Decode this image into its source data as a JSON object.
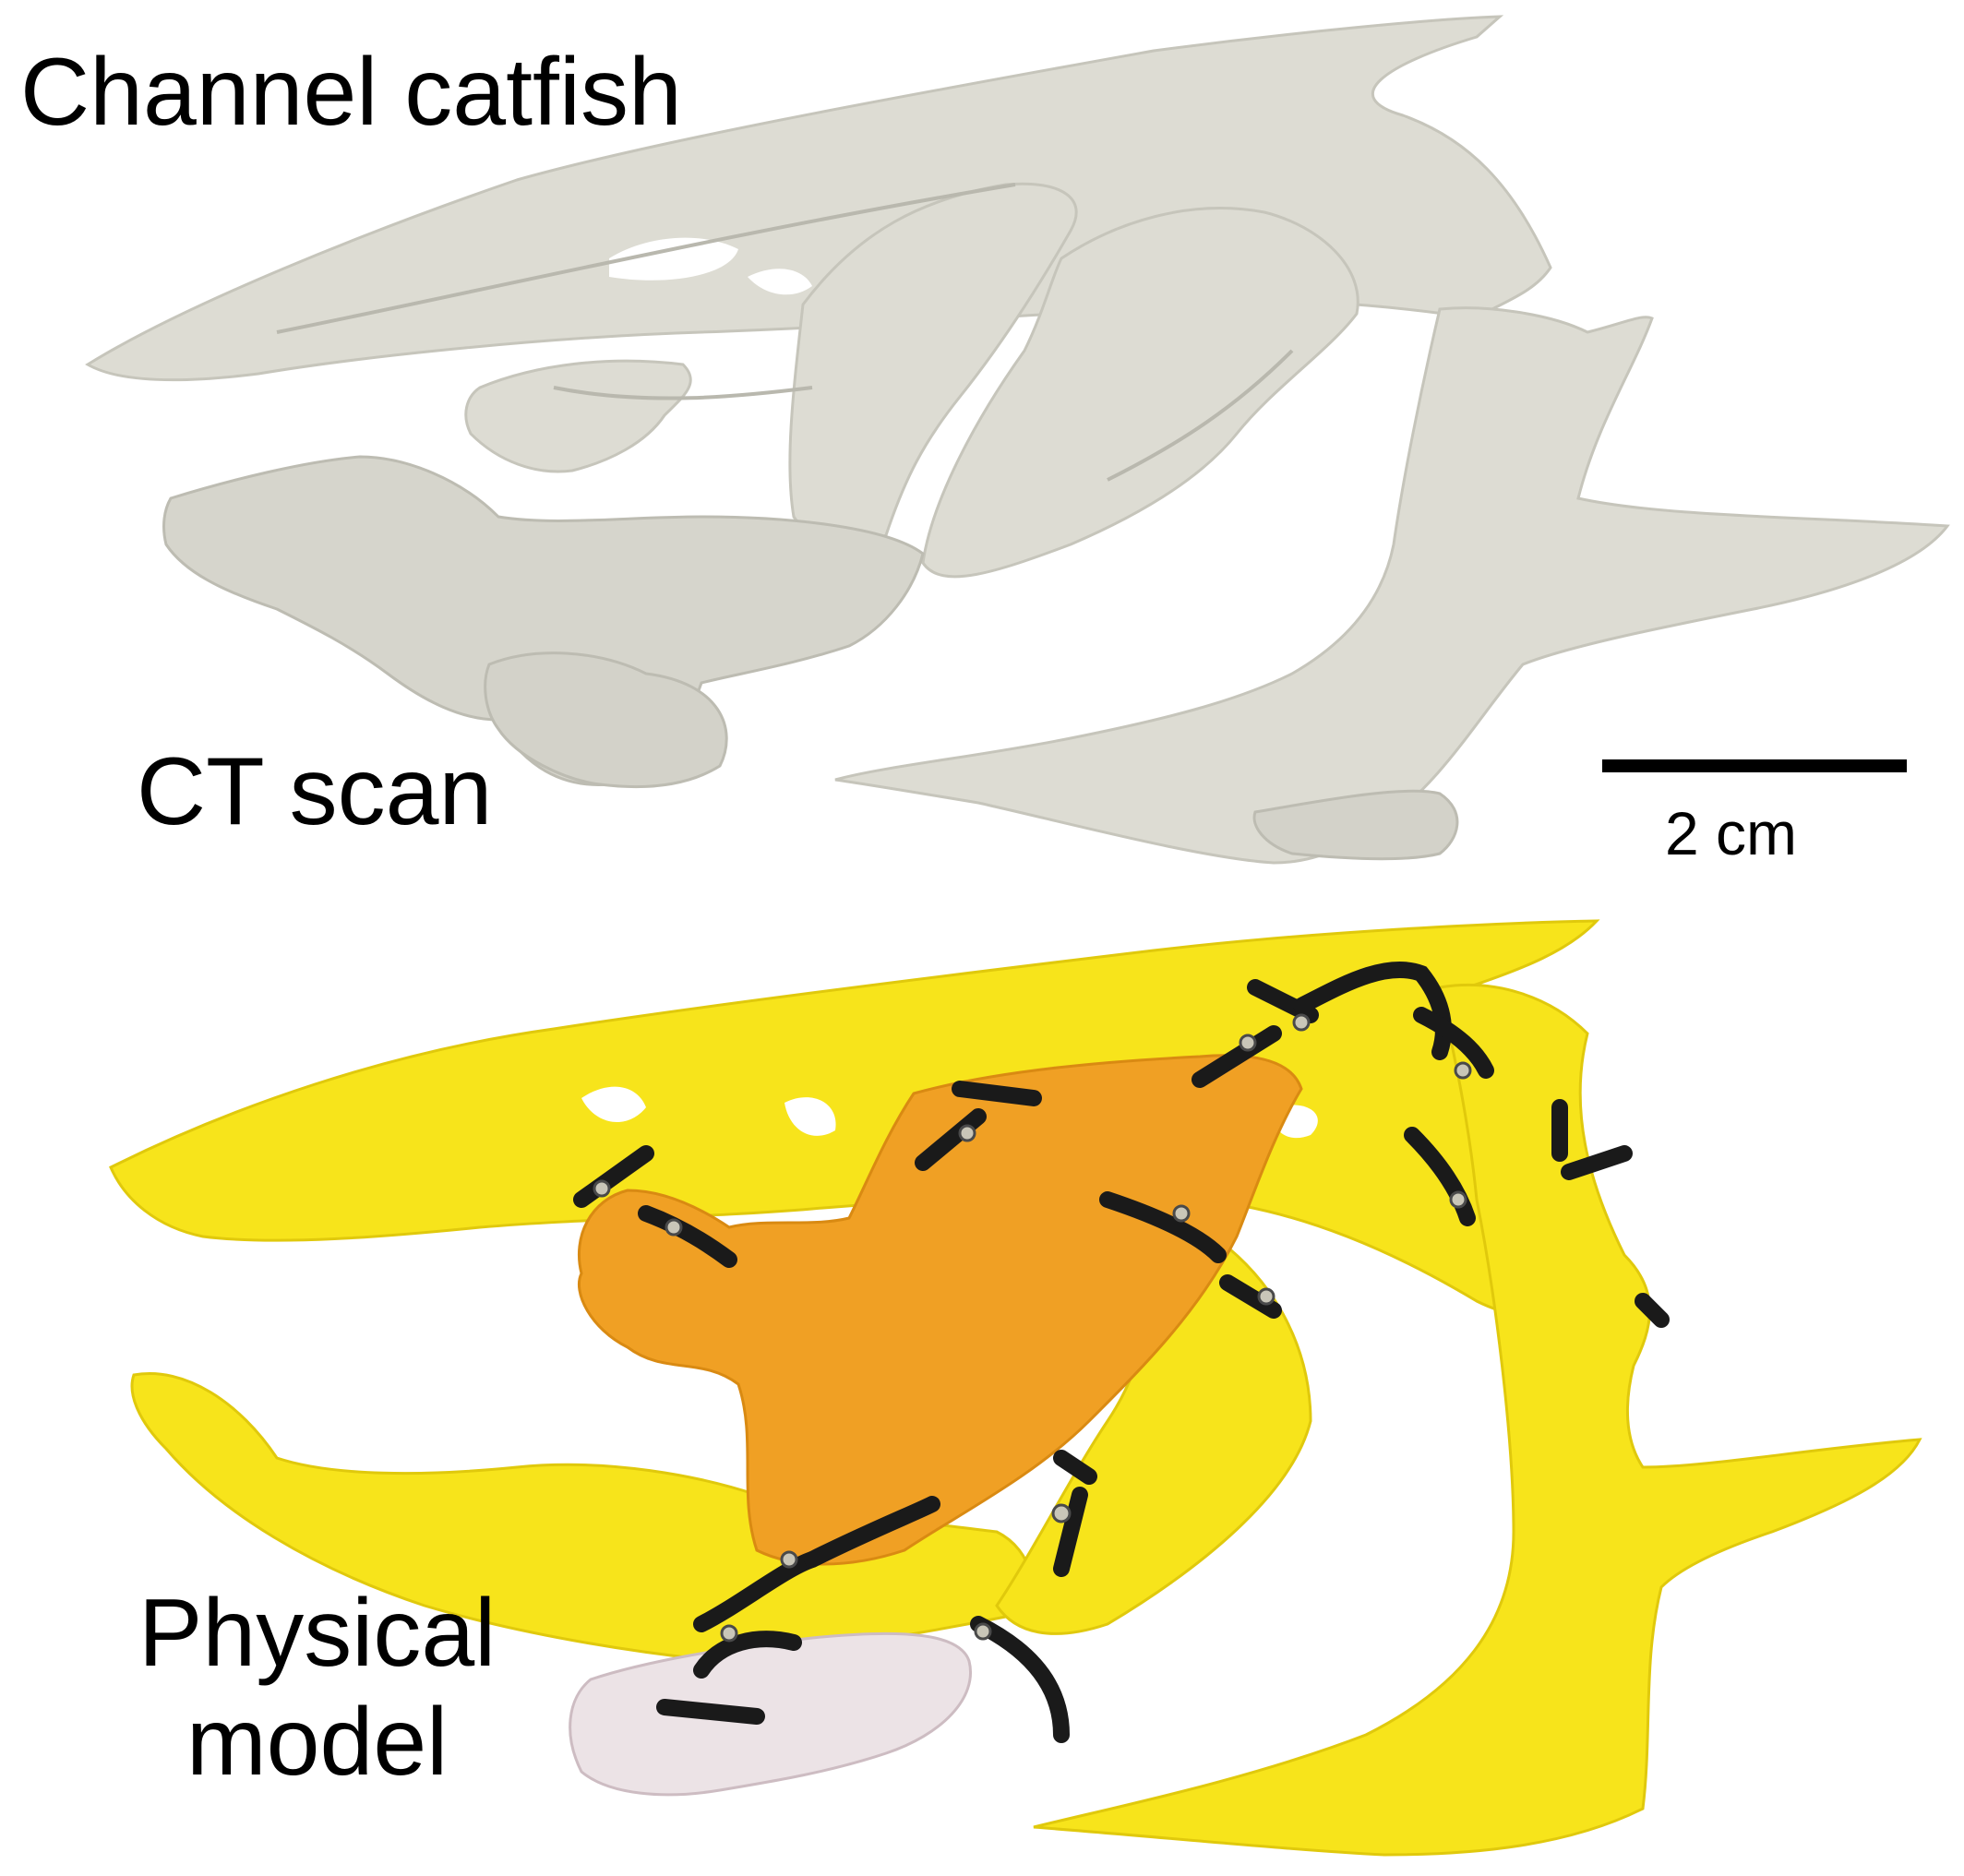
{
  "title": "Channel catfish",
  "panels": {
    "ct": {
      "label": "CT scan",
      "bone_color": "#dddcd3",
      "shadow_color": "#bdbcb2"
    },
    "physical": {
      "label_line1": "Physical",
      "label_line2": "model",
      "yellow_color": "#f7e41b",
      "orange_color": "#f0a024",
      "pink_color": "#ece3e6",
      "band_color": "#1a1a1a",
      "screw_color": "#c9c6b8"
    }
  },
  "scale_bar": {
    "label": "2 cm"
  }
}
